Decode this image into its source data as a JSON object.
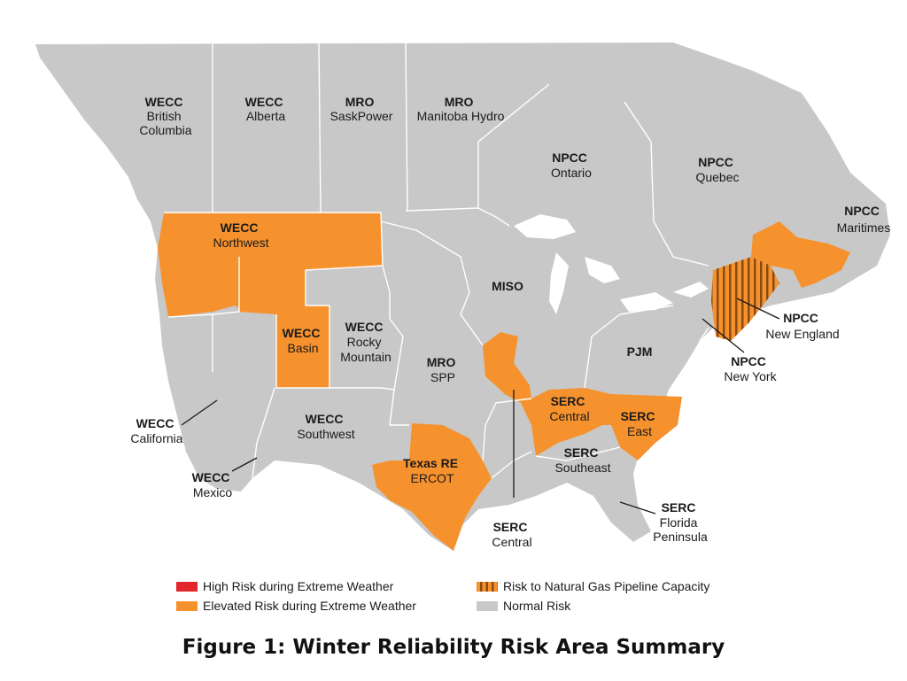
{
  "caption": "Figure 1: Winter Reliability Risk Area Summary",
  "colors": {
    "normal": "#c8c8c8",
    "elevated": "#f6922e",
    "high": "#e3262b",
    "pipeline_stripe": "#8a4b12",
    "border": "#ffffff"
  },
  "legend": {
    "high_risk": "High Risk during Extreme Weather",
    "elevated_risk": "Elevated Risk during Extreme Weather",
    "pipeline_risk": "Risk to Natural Gas Pipeline Capacity",
    "normal_risk": "Normal Risk"
  },
  "regions": {
    "wecc_bc": {
      "line1": "WECC",
      "line2": "British",
      "line3": "Columbia",
      "risk": "normal"
    },
    "wecc_ab": {
      "line1": "WECC",
      "line2": "Alberta",
      "risk": "normal"
    },
    "mro_sask": {
      "line1": "MRO",
      "line2": "SaskPower",
      "risk": "normal"
    },
    "mro_mh": {
      "line1": "MRO",
      "line2": "Manitoba Hydro",
      "risk": "normal"
    },
    "npcc_on": {
      "line1": "NPCC",
      "line2": "Ontario",
      "risk": "normal"
    },
    "npcc_qc": {
      "line1": "NPCC",
      "line2": "Quebec",
      "risk": "normal"
    },
    "npcc_mar": {
      "line1": "NPCC",
      "line2": "Maritimes",
      "risk": "elevated"
    },
    "wecc_nw": {
      "line1": "WECC",
      "line2": "Northwest",
      "risk": "elevated"
    },
    "miso": {
      "line1": "MISO",
      "risk": "normal"
    },
    "npcc_ne": {
      "line1": "NPCC",
      "line2": "New England",
      "risk": "elevated + pipeline"
    },
    "wecc_basin": {
      "line1": "WECC",
      "line2": "Basin",
      "risk": "elevated"
    },
    "wecc_rm": {
      "line1": "WECC",
      "line2": "Rocky",
      "line3": "Mountain",
      "risk": "normal"
    },
    "pjm": {
      "line1": "PJM",
      "risk": "normal"
    },
    "mro_spp": {
      "line1": "MRO",
      "line2": "SPP",
      "risk": "normal"
    },
    "npcc_ny": {
      "line1": "NPCC",
      "line2": "New York",
      "risk": "normal"
    },
    "serc_c": {
      "line1": "SERC",
      "line2": "Central",
      "risk": "elevated"
    },
    "serc_e": {
      "line1": "SERC",
      "line2": "East",
      "risk": "elevated"
    },
    "wecc_ca": {
      "line1": "WECC",
      "line2": "California",
      "risk": "normal"
    },
    "wecc_sw": {
      "line1": "WECC",
      "line2": "Southwest",
      "risk": "normal"
    },
    "serc_se": {
      "line1": "SERC",
      "line2": "Southeast",
      "risk": "normal"
    },
    "tre": {
      "line1": "Texas RE",
      "line2": "ERCOT",
      "risk": "elevated"
    },
    "wecc_mx": {
      "line1": "WECC",
      "line2": "Mexico",
      "risk": "normal"
    },
    "serc_c2": {
      "line1": "SERC",
      "line2": "Central",
      "risk": "elevated"
    },
    "serc_fp": {
      "line1": "SERC",
      "line2": "Florida",
      "line3": "Peninsula",
      "risk": "normal"
    }
  }
}
